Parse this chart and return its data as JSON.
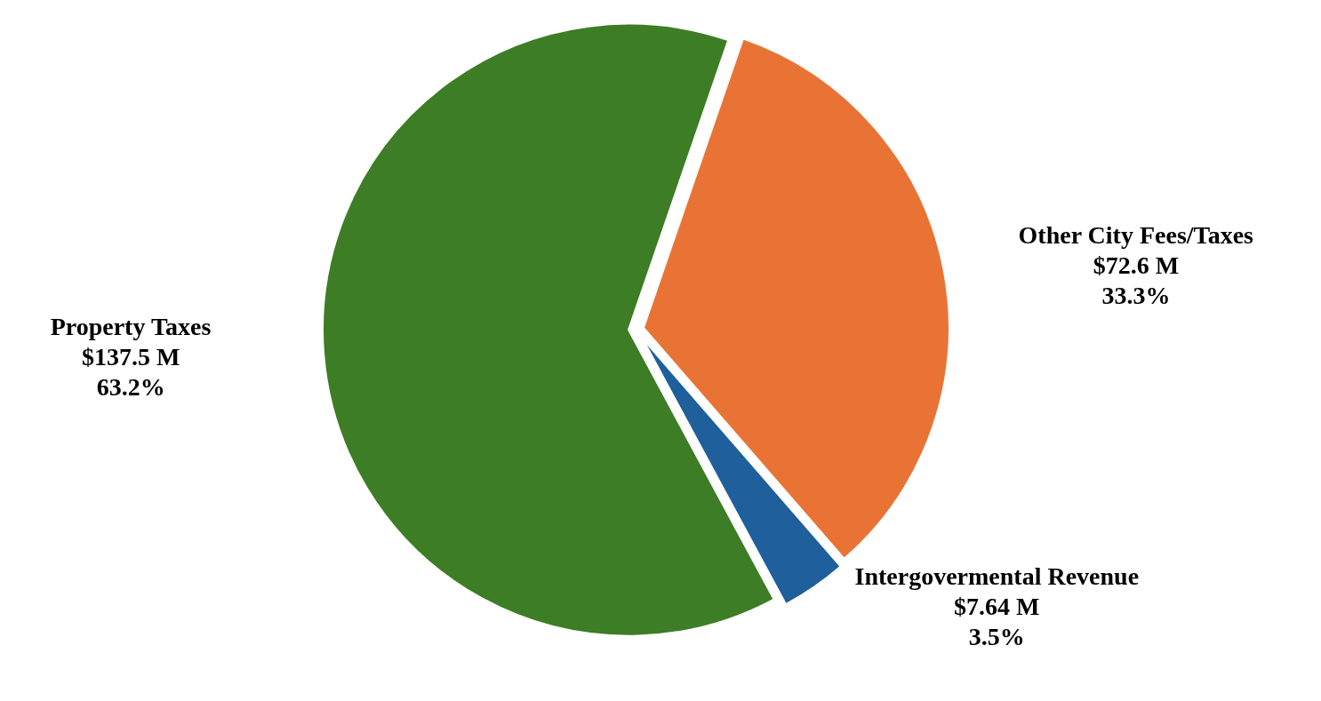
{
  "chart_data": {
    "type": "pie",
    "categories": [
      "Other City Fees/Taxes",
      "Intergovermental Revenue",
      "Property Taxes"
    ],
    "values": [
      72.6,
      7.64,
      137.5
    ],
    "colors": [
      "#e97335",
      "#1f5f9b",
      "#3d7d25"
    ],
    "value_labels": [
      "$72.6 M\n33.3%",
      "$7.64 M\n3.5%",
      "$137.5 M\n63.2%"
    ]
  }
}
